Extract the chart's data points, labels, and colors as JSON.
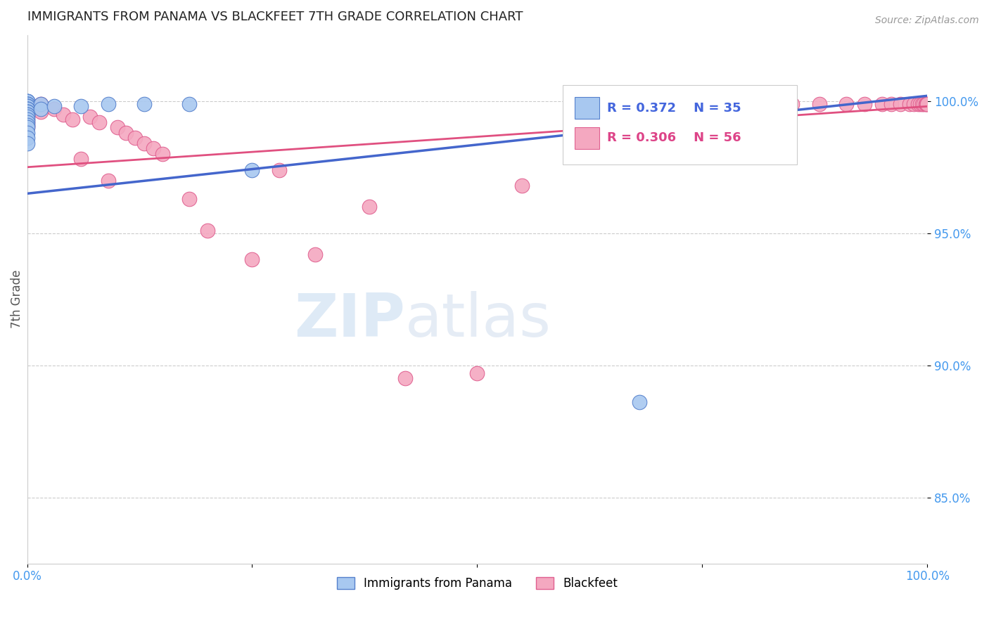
{
  "title": "IMMIGRANTS FROM PANAMA VS BLACKFEET 7TH GRADE CORRELATION CHART",
  "source_text": "Source: ZipAtlas.com",
  "ylabel": "7th Grade",
  "xlim": [
    0.0,
    1.0
  ],
  "ylim": [
    0.825,
    1.025
  ],
  "yticks": [
    0.85,
    0.9,
    0.95,
    1.0
  ],
  "ytick_labels": [
    "85.0%",
    "90.0%",
    "95.0%",
    "100.0%"
  ],
  "xticks": [
    0.0,
    0.25,
    0.5,
    0.75,
    1.0
  ],
  "xtick_labels": [
    "0.0%",
    "",
    "",
    "",
    "100.0%"
  ],
  "blue_R": 0.372,
  "blue_N": 35,
  "pink_R": 0.306,
  "pink_N": 56,
  "blue_color": "#A8C8F0",
  "pink_color": "#F4A8C0",
  "blue_edge_color": "#5580CC",
  "pink_edge_color": "#E06090",
  "blue_line_color": "#4466CC",
  "pink_line_color": "#E05080",
  "legend_label_blue": "Immigrants from Panama",
  "legend_label_pink": "Blackfeet",
  "blue_points_x": [
    0.0,
    0.0,
    0.0,
    0.0,
    0.0,
    0.0,
    0.0,
    0.0,
    0.0,
    0.0,
    0.0,
    0.0,
    0.0,
    0.0,
    0.0,
    0.0,
    0.0,
    0.0,
    0.0,
    0.0,
    0.0,
    0.0,
    0.0,
    0.0,
    0.0,
    0.015,
    0.015,
    0.03,
    0.06,
    0.09,
    0.13,
    0.18,
    0.25,
    0.62,
    0.68
  ],
  "blue_points_y": [
    1.0,
    1.0,
    1.0,
    0.999,
    0.999,
    0.999,
    0.998,
    0.998,
    0.998,
    0.997,
    0.997,
    0.997,
    0.996,
    0.996,
    0.996,
    0.995,
    0.995,
    0.994,
    0.993,
    0.992,
    0.991,
    0.99,
    0.988,
    0.986,
    0.984,
    0.999,
    0.997,
    0.998,
    0.998,
    0.999,
    0.999,
    0.999,
    0.974,
    0.999,
    0.886
  ],
  "pink_points_x": [
    0.0,
    0.0,
    0.0,
    0.0,
    0.0,
    0.0,
    0.0,
    0.0,
    0.0,
    0.0,
    0.015,
    0.015,
    0.03,
    0.04,
    0.05,
    0.06,
    0.07,
    0.08,
    0.09,
    0.1,
    0.11,
    0.12,
    0.13,
    0.14,
    0.15,
    0.18,
    0.2,
    0.25,
    0.28,
    0.32,
    0.38,
    0.42,
    0.5,
    0.55,
    0.62,
    0.68,
    0.72,
    0.75,
    0.8,
    0.82,
    0.85,
    0.88,
    0.91,
    0.93,
    0.95,
    0.96,
    0.97,
    0.98,
    0.985,
    0.99,
    0.992,
    0.994,
    0.996,
    0.998,
    0.999,
    1.0
  ],
  "pink_points_y": [
    0.998,
    0.997,
    0.997,
    0.996,
    0.995,
    0.994,
    0.993,
    0.992,
    0.991,
    0.99,
    0.999,
    0.996,
    0.997,
    0.995,
    0.993,
    0.978,
    0.994,
    0.992,
    0.97,
    0.99,
    0.988,
    0.986,
    0.984,
    0.982,
    0.98,
    0.963,
    0.951,
    0.94,
    0.974,
    0.942,
    0.96,
    0.895,
    0.897,
    0.968,
    0.999,
    0.999,
    0.999,
    0.998,
    0.999,
    0.999,
    0.999,
    0.999,
    0.999,
    0.999,
    0.999,
    0.999,
    0.999,
    0.999,
    0.999,
    0.999,
    0.999,
    0.999,
    0.999,
    0.999,
    0.999,
    0.999
  ]
}
